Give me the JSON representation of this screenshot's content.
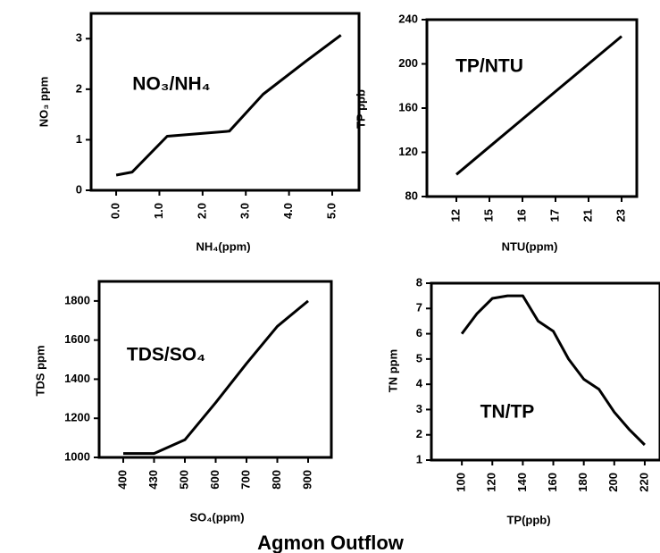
{
  "title": "Agmon Outflow",
  "chart_data": [
    {
      "type": "line",
      "annotation": "NO₃/NH₄",
      "x_label": "NH₄(ppm)",
      "y_label": "NO₃ ppm",
      "x": [
        0,
        0.37,
        1.18,
        2.62,
        3.4,
        4.4,
        5.2
      ],
      "values": [
        0.3,
        0.36,
        1.07,
        1.17,
        1.9,
        2.56,
        3.07
      ],
      "color": "#000000",
      "xlim": [
        -0.58,
        5.62
      ],
      "xticks": [
        {
          "value": 0,
          "label": "0.0"
        },
        {
          "value": 1,
          "label": "1.0"
        },
        {
          "value": 2,
          "label": "2.0"
        },
        {
          "value": 3,
          "label": "3.0"
        },
        {
          "value": 4,
          "label": "4.0"
        },
        {
          "value": 5,
          "label": "5.0"
        }
      ],
      "ylim": [
        0,
        3.5
      ],
      "yticks": [
        0,
        1,
        2,
        3
      ]
    },
    {
      "type": "line",
      "annotation": "TP/NTU",
      "x_label": "NTU(ppm)",
      "y_label": "TP ppb",
      "categories": [
        "12",
        "15",
        "16",
        "17",
        "21",
        "23"
      ],
      "values": [
        100,
        125,
        150,
        175,
        200,
        225
      ],
      "color": "#000000",
      "ylim": [
        80,
        240
      ],
      "yticks": [
        80,
        120,
        160,
        200,
        240
      ]
    },
    {
      "type": "line",
      "annotation": "TDS/SO₄",
      "x_label": "SO₄(ppm)",
      "y_label": "TDS ppm",
      "categories": [
        "400",
        "430",
        "500",
        "600",
        "700",
        "800",
        "900"
      ],
      "values": [
        1020,
        1020,
        1090,
        1280,
        1480,
        1670,
        1800
      ],
      "color": "#000000",
      "ylim": [
        1000,
        1900
      ],
      "yticks": [
        1000,
        1200,
        1400,
        1600,
        1800
      ]
    },
    {
      "type": "line",
      "annotation": "TN/TP",
      "x_label": "TP(ppb)",
      "y_label": "TN ppm",
      "x": [
        100,
        110,
        120,
        130,
        140,
        150,
        160,
        170,
        180,
        190,
        200,
        210,
        220
      ],
      "values": [
        6.0,
        6.8,
        7.4,
        7.5,
        7.5,
        6.5,
        6.1,
        5.0,
        4.2,
        3.8,
        2.9,
        2.2,
        1.6
      ],
      "color": "#000000",
      "xlim": [
        80,
        230
      ],
      "xticks": [
        100,
        120,
        140,
        160,
        180,
        200,
        220
      ],
      "ylim": [
        1,
        8
      ],
      "yticks": [
        1,
        2,
        3,
        4,
        5,
        6,
        7,
        8
      ]
    }
  ]
}
